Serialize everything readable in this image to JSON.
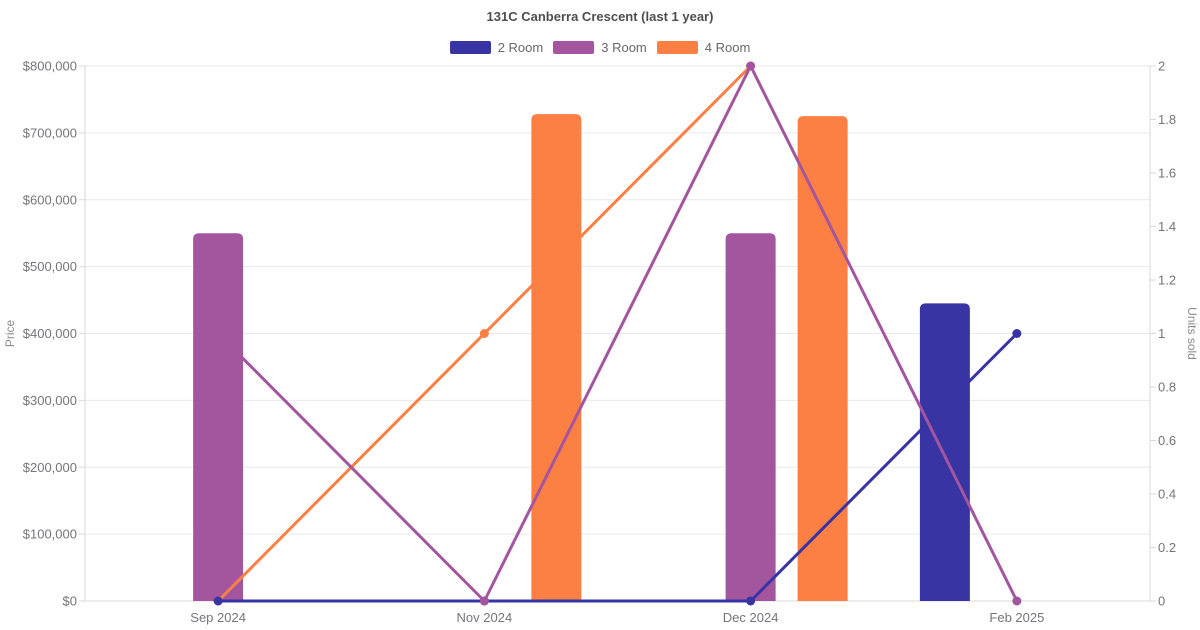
{
  "chart_data": {
    "type": "bar+line",
    "title": "131C Canberra Crescent (last 1 year)",
    "categories": [
      "Sep 2024",
      "Nov 2024",
      "Dec 2024",
      "Feb 2025"
    ],
    "y_left": {
      "label": "Price",
      "min": 0,
      "max": 800000,
      "ticks": [
        0,
        100000,
        200000,
        300000,
        400000,
        500000,
        600000,
        700000,
        800000
      ],
      "tick_labels": [
        "$0",
        "$100,000",
        "$200,000",
        "$300,000",
        "$400,000",
        "$500,000",
        "$600,000",
        "$700,000",
        "$800,000"
      ]
    },
    "y_right": {
      "label": "Units sold",
      "min": 0,
      "max": 2,
      "ticks": [
        0,
        0.2,
        0.4,
        0.6,
        0.8,
        1,
        1.2,
        1.4,
        1.6,
        1.8,
        2
      ],
      "tick_labels": [
        "0",
        "0.2",
        "0.4",
        "0.6",
        "0.8",
        "1",
        "1.2",
        "1.4",
        "1.6",
        "1.8",
        "2"
      ]
    },
    "legend_position": "top",
    "grid": "horizontal",
    "series": [
      {
        "name": "2 Room",
        "color": "#3834a4",
        "bar_prices": [
          null,
          null,
          null,
          445000
        ],
        "line_units_sold": [
          0,
          0,
          0,
          1
        ]
      },
      {
        "name": "3 Room",
        "color": "#a3559e",
        "bar_prices": [
          550000,
          null,
          550000,
          null
        ],
        "line_units_sold": [
          1,
          0,
          2,
          0
        ]
      },
      {
        "name": "4 Room",
        "color": "#fc7f43",
        "bar_prices": [
          null,
          728000,
          725000,
          null
        ],
        "line_units_sold": [
          0,
          1,
          2,
          null
        ]
      }
    ],
    "colors": {
      "grid_line": "#eaeaea",
      "axis_line": "#d9d9d9",
      "tick_text": "#75757a",
      "title_text": "#4e4e50"
    }
  }
}
